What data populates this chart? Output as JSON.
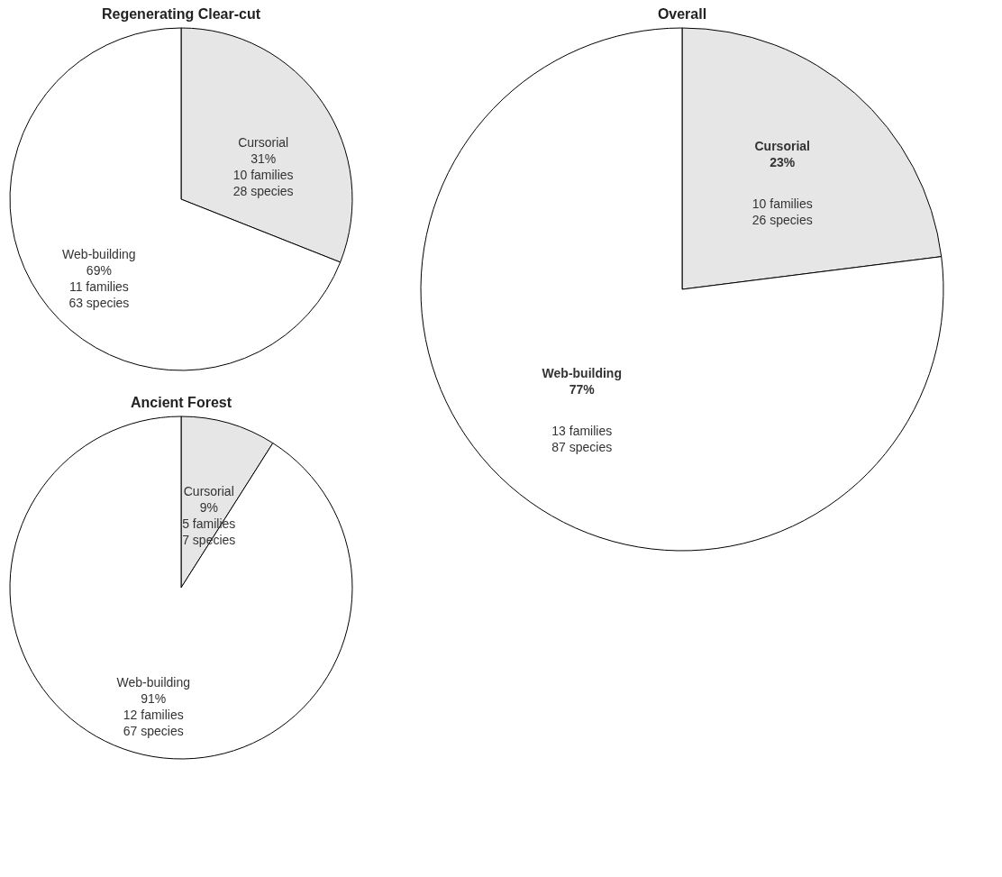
{
  "chart_data": [
    {
      "type": "pie",
      "title": "Regenerating Clear-cut",
      "categories": [
        "Cursorial",
        "Web-building"
      ],
      "values": [
        31,
        69
      ],
      "colors": [
        "#e6e6e6",
        "#ffffff"
      ],
      "value_labels": [
        "31%",
        "69%"
      ],
      "annotations": [
        "10 families",
        "28 species",
        "11 families",
        "63 species"
      ]
    },
    {
      "type": "pie",
      "title": "Ancient Forest",
      "categories": [
        "Cursorial",
        "Web-building"
      ],
      "values": [
        9,
        91
      ],
      "colors": [
        "#e6e6e6",
        "#ffffff"
      ],
      "value_labels": [
        "9%",
        "91%"
      ],
      "annotations": [
        "5 families",
        "7 species",
        "12 families",
        "67 species"
      ]
    },
    {
      "type": "pie",
      "title": "Overall",
      "categories": [
        "Cursorial",
        "Web-building"
      ],
      "values": [
        23,
        77
      ],
      "colors": [
        "#e6e6e6",
        "#ffffff"
      ],
      "value_labels": [
        "23%",
        "77%"
      ],
      "annotations": [
        "10 families",
        "26 species",
        "13 families",
        "87 species"
      ]
    }
  ]
}
